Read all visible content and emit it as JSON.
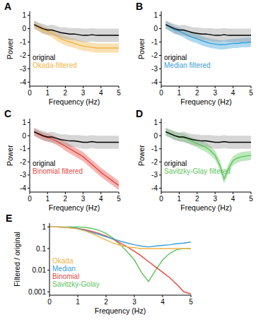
{
  "chart_data": [
    {
      "type": "line",
      "title": "A",
      "x_label": "Frequency (Hz)",
      "y_label": "Power",
      "legend": "bottom-left",
      "x": [
        0.25,
        0.5,
        0.75,
        1,
        1.25,
        1.5,
        1.75,
        2,
        2.25,
        2.5,
        2.75,
        3,
        3.25,
        3.5,
        3.75,
        4,
        4.25,
        4.5,
        4.75,
        5
      ],
      "xlim": [
        0,
        5
      ],
      "xticks": [
        0,
        1,
        2,
        3,
        4,
        5
      ],
      "ylim": [
        -4.3,
        1.3
      ],
      "yticks": [
        -4,
        -3,
        -2,
        -1,
        0,
        1
      ],
      "series": [
        {
          "name": "original",
          "color": "#000000",
          "values": [
            0.3,
            0.15,
            0.0,
            -0.1,
            -0.1,
            -0.2,
            -0.3,
            -0.35,
            -0.4,
            -0.4,
            -0.45,
            -0.5,
            -0.5,
            -0.45,
            -0.5,
            -0.5,
            -0.5,
            -0.5,
            -0.5,
            -0.5
          ],
          "error": [
            0.3,
            0.3,
            0.35,
            0.35,
            0.4,
            0.4,
            0.4,
            0.45,
            0.45,
            0.45,
            0.5,
            0.5,
            0.5,
            0.5,
            0.5,
            0.5,
            0.5,
            0.5,
            0.5,
            0.5
          ]
        },
        {
          "name": "Okada-filtered",
          "color": "#f0b445",
          "values": [
            0.3,
            0.1,
            -0.1,
            -0.2,
            -0.35,
            -0.55,
            -0.75,
            -0.9,
            -1.0,
            -1.1,
            -1.2,
            -1.3,
            -1.35,
            -1.4,
            -1.45,
            -1.45,
            -1.45,
            -1.45,
            -1.45,
            -1.45
          ],
          "error": [
            0.3,
            0.3,
            0.3,
            0.3,
            0.3,
            0.35,
            0.35,
            0.35,
            0.35,
            0.35,
            0.35,
            0.35,
            0.35,
            0.35,
            0.35,
            0.35,
            0.35,
            0.35,
            0.35,
            0.35
          ]
        }
      ]
    },
    {
      "type": "line",
      "title": "B",
      "x_label": "Frequency (Hz)",
      "y_label": "Power",
      "legend": "bottom-left",
      "x": [
        0.25,
        0.5,
        0.75,
        1,
        1.25,
        1.5,
        1.75,
        2,
        2.25,
        2.5,
        2.75,
        3,
        3.25,
        3.5,
        3.75,
        4,
        4.25,
        4.5,
        4.75,
        5
      ],
      "xlim": [
        0,
        5
      ],
      "xticks": [
        0,
        1,
        2,
        3,
        4,
        5
      ],
      "ylim": [
        -4.3,
        1.3
      ],
      "yticks": [
        -4,
        -3,
        -2,
        -1,
        0,
        1
      ],
      "series": [
        {
          "name": "original",
          "color": "#000000",
          "values": [
            0.3,
            0.15,
            0.0,
            -0.1,
            -0.1,
            -0.2,
            -0.3,
            -0.35,
            -0.4,
            -0.4,
            -0.45,
            -0.5,
            -0.5,
            -0.45,
            -0.5,
            -0.5,
            -0.5,
            -0.5,
            -0.5,
            -0.5
          ],
          "error": [
            0.3,
            0.3,
            0.35,
            0.35,
            0.4,
            0.4,
            0.4,
            0.45,
            0.45,
            0.45,
            0.5,
            0.5,
            0.5,
            0.5,
            0.5,
            0.5,
            0.5,
            0.5,
            0.5,
            0.5
          ]
        },
        {
          "name": "Median filtered",
          "color": "#3a9fd8",
          "values": [
            0.3,
            0.1,
            -0.1,
            -0.2,
            -0.35,
            -0.5,
            -0.65,
            -0.75,
            -0.9,
            -1.0,
            -1.1,
            -1.15,
            -1.2,
            -1.2,
            -1.15,
            -1.1,
            -1.1,
            -1.05,
            -1.05,
            -1.0
          ],
          "error": [
            0.3,
            0.3,
            0.3,
            0.3,
            0.3,
            0.35,
            0.35,
            0.35,
            0.35,
            0.35,
            0.35,
            0.35,
            0.35,
            0.35,
            0.35,
            0.35,
            0.35,
            0.35,
            0.35,
            0.35
          ]
        }
      ]
    },
    {
      "type": "line",
      "title": "C",
      "x_label": "Frequency (Hz)",
      "y_label": "Power",
      "legend": "bottom-left",
      "x": [
        0.25,
        0.5,
        0.75,
        1,
        1.25,
        1.5,
        1.75,
        2,
        2.25,
        2.5,
        2.75,
        3,
        3.25,
        3.5,
        3.75,
        4,
        4.25,
        4.5,
        4.75,
        5
      ],
      "xlim": [
        0,
        5
      ],
      "xticks": [
        0,
        1,
        2,
        3,
        4,
        5
      ],
      "ylim": [
        -4.3,
        1.3
      ],
      "yticks": [
        -4,
        -3,
        -2,
        -1,
        0,
        1
      ],
      "series": [
        {
          "name": "original",
          "color": "#000000",
          "values": [
            0.3,
            0.15,
            0.0,
            -0.1,
            -0.1,
            -0.2,
            -0.3,
            -0.35,
            -0.4,
            -0.4,
            -0.45,
            -0.5,
            -0.5,
            -0.45,
            -0.5,
            -0.5,
            -0.5,
            -0.5,
            -0.5,
            -0.5
          ],
          "error": [
            0.3,
            0.3,
            0.35,
            0.35,
            0.4,
            0.4,
            0.4,
            0.45,
            0.45,
            0.45,
            0.5,
            0.5,
            0.5,
            0.5,
            0.5,
            0.5,
            0.5,
            0.5,
            0.5,
            0.5
          ]
        },
        {
          "name": "Binomial filtered",
          "color": "#e8473f",
          "values": [
            0.3,
            0.1,
            -0.05,
            -0.15,
            -0.25,
            -0.4,
            -0.6,
            -0.8,
            -1.0,
            -1.2,
            -1.4,
            -1.6,
            -1.9,
            -2.2,
            -2.5,
            -2.8,
            -3.05,
            -3.3,
            -3.55,
            -3.8
          ],
          "error": [
            0.3,
            0.3,
            0.3,
            0.3,
            0.3,
            0.3,
            0.3,
            0.35,
            0.35,
            0.35,
            0.35,
            0.35,
            0.35,
            0.35,
            0.35,
            0.35,
            0.35,
            0.35,
            0.35,
            0.35
          ]
        }
      ]
    },
    {
      "type": "line",
      "title": "D",
      "x_label": "Frequency (Hz)",
      "y_label": "Power",
      "legend": "bottom-left",
      "x": [
        0.25,
        0.5,
        0.75,
        1,
        1.25,
        1.5,
        1.75,
        2,
        2.25,
        2.5,
        2.75,
        3,
        3.25,
        3.5,
        3.75,
        4,
        4.25,
        4.5,
        4.75,
        5
      ],
      "xlim": [
        0,
        5
      ],
      "xticks": [
        0,
        1,
        2,
        3,
        4,
        5
      ],
      "ylim": [
        -4.3,
        1.3
      ],
      "yticks": [
        -4,
        -3,
        -2,
        -1,
        0,
        1
      ],
      "series": [
        {
          "name": "original",
          "color": "#000000",
          "values": [
            0.3,
            0.15,
            0.0,
            -0.1,
            -0.1,
            -0.2,
            -0.3,
            -0.35,
            -0.4,
            -0.4,
            -0.45,
            -0.5,
            -0.5,
            -0.45,
            -0.5,
            -0.5,
            -0.5,
            -0.5,
            -0.5,
            -0.5
          ],
          "error": [
            0.3,
            0.3,
            0.35,
            0.35,
            0.4,
            0.4,
            0.4,
            0.45,
            0.45,
            0.45,
            0.5,
            0.5,
            0.5,
            0.5,
            0.5,
            0.5,
            0.5,
            0.5,
            0.5,
            0.5
          ]
        },
        {
          "name": "Savitzky-Glay filtered",
          "color": "#5cc55c",
          "values": [
            0.3,
            0.15,
            0.0,
            -0.1,
            -0.15,
            -0.3,
            -0.45,
            -0.6,
            -0.75,
            -0.9,
            -1.15,
            -1.5,
            -2.2,
            -3.3,
            -2.5,
            -1.9,
            -1.7,
            -1.6,
            -1.55,
            -1.5
          ],
          "error": [
            0.3,
            0.3,
            0.3,
            0.3,
            0.3,
            0.3,
            0.3,
            0.3,
            0.35,
            0.35,
            0.35,
            0.35,
            0.35,
            0.35,
            0.35,
            0.35,
            0.35,
            0.35,
            0.35,
            0.35
          ]
        }
      ]
    },
    {
      "type": "line",
      "title": "E",
      "x_label": "Frequency (Hz)",
      "y_label": "Filtered / original",
      "legend": "bottom-left",
      "log": "y",
      "x": [
        0,
        0.25,
        0.5,
        0.75,
        1,
        1.25,
        1.5,
        1.75,
        2,
        2.25,
        2.5,
        2.75,
        3,
        3.25,
        3.5,
        3.75,
        4,
        4.25,
        4.5,
        4.75,
        5
      ],
      "xlim": [
        0,
        5
      ],
      "xticks": [
        0,
        1,
        2,
        3,
        4,
        5
      ],
      "ylim": [
        0.0007,
        1.5
      ],
      "yticks": [
        0.001,
        0.01,
        0.1,
        1
      ],
      "series": [
        {
          "name": "Okada",
          "color": "#f0b445",
          "values": [
            1,
            1,
            0.95,
            0.9,
            0.8,
            0.65,
            0.5,
            0.35,
            0.25,
            0.18,
            0.14,
            0.12,
            0.11,
            0.1,
            0.1,
            0.1,
            0.1,
            0.1,
            0.1,
            0.1,
            0.1
          ]
        },
        {
          "name": "Median",
          "color": "#3a9fd8",
          "values": [
            1,
            1,
            0.97,
            0.92,
            0.85,
            0.7,
            0.55,
            0.45,
            0.35,
            0.28,
            0.22,
            0.18,
            0.15,
            0.13,
            0.12,
            0.13,
            0.14,
            0.15,
            0.17,
            0.18,
            0.2
          ]
        },
        {
          "name": "Binomial",
          "color": "#e8473f",
          "values": [
            1,
            1,
            0.97,
            0.92,
            0.85,
            0.75,
            0.62,
            0.5,
            0.38,
            0.27,
            0.18,
            0.12,
            0.075,
            0.045,
            0.025,
            0.014,
            0.008,
            0.0045,
            0.0022,
            0.001,
            0.0008
          ]
        },
        {
          "name": "Savitzky-Golay",
          "color": "#5cc55c",
          "values": [
            1,
            1,
            1,
            1,
            1,
            0.95,
            0.85,
            0.7,
            0.5,
            0.3,
            0.15,
            0.07,
            0.03,
            0.008,
            0.003,
            0.01,
            0.03,
            0.06,
            0.09,
            0.1,
            0.1
          ]
        }
      ]
    }
  ]
}
